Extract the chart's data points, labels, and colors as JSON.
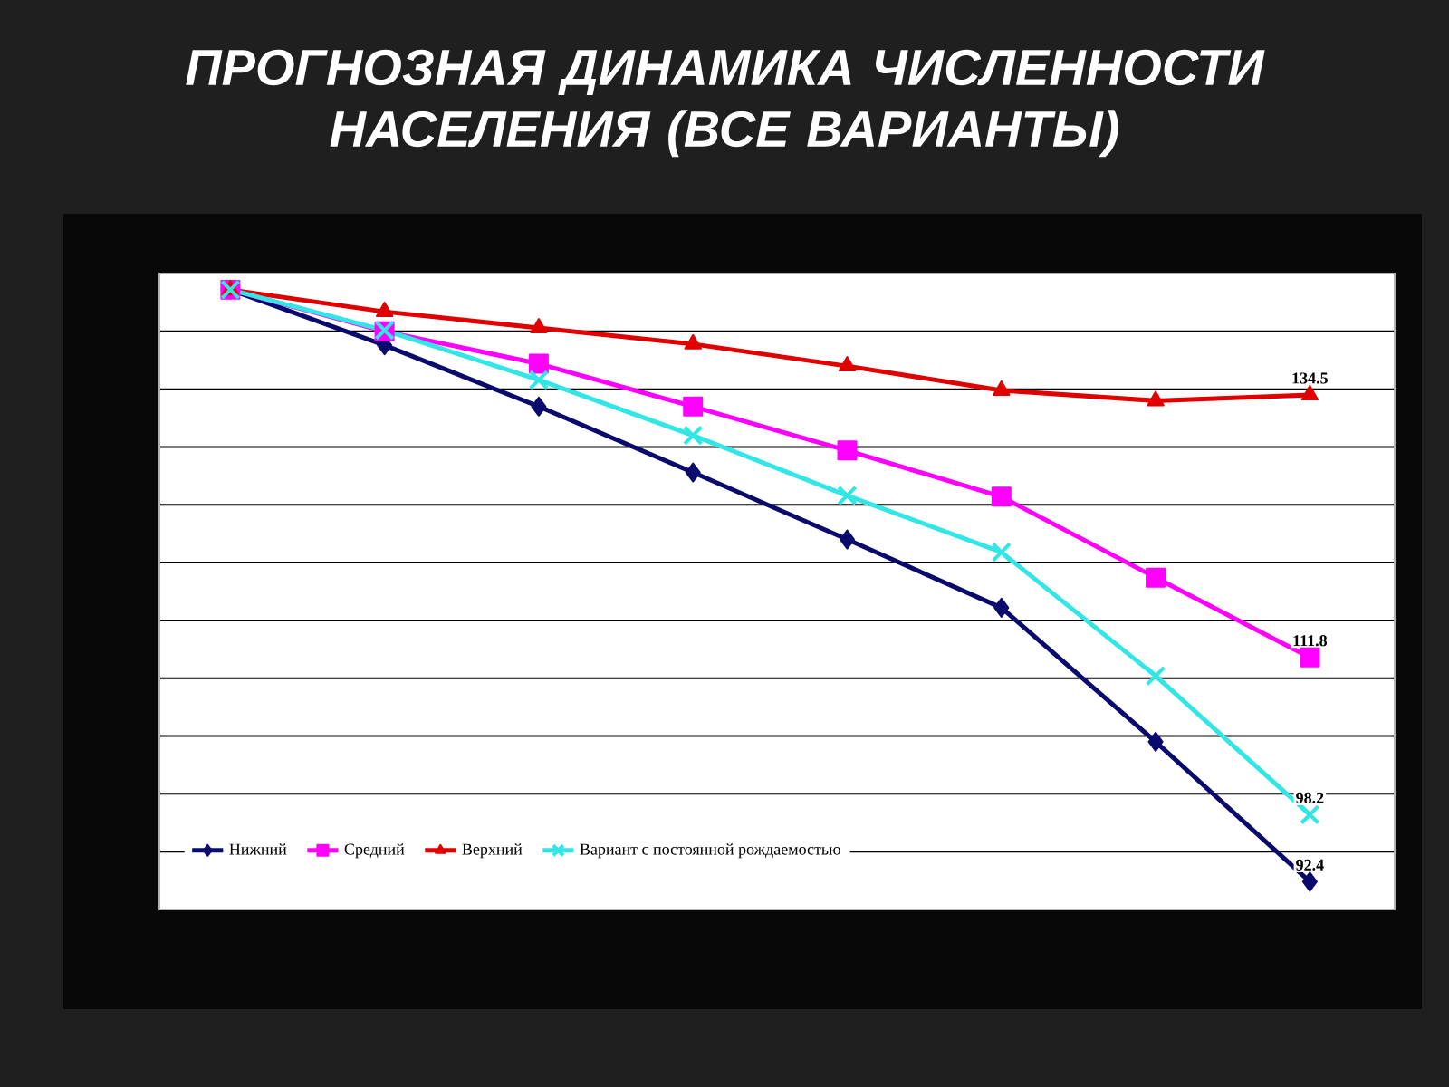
{
  "chart_data": {
    "type": "line",
    "title": "ПРОГНОЗНАЯ ДИНАМИКА ЧИСЛЕННОСТИ НАСЕЛЕНИЯ (ВСЕ ВАРИАНТЫ)",
    "categories": [
      null,
      null,
      null,
      null,
      null,
      null,
      null,
      null
    ],
    "series": [
      {
        "name": "Нижний",
        "color": "#0a0a6e",
        "marker": "diamond",
        "values": [
          143.6,
          138.8,
          133.5,
          127.8,
          122.0,
          116.1,
          104.5,
          92.4
        ],
        "value_labels": [
          null,
          null,
          null,
          null,
          null,
          null,
          null,
          "92.4"
        ]
      },
      {
        "name": "Средний",
        "color": "#ff00ff",
        "marker": "square",
        "values": [
          143.6,
          140.0,
          137.2,
          133.5,
          129.7,
          125.7,
          118.7,
          111.8
        ],
        "value_labels": [
          null,
          null,
          null,
          null,
          null,
          null,
          null,
          "111.8"
        ]
      },
      {
        "name": "Верхний",
        "color": "#e00000",
        "marker": "triangle",
        "values": [
          143.6,
          141.7,
          140.3,
          138.9,
          137.0,
          134.9,
          134.0,
          134.5
        ],
        "value_labels": [
          null,
          null,
          null,
          null,
          null,
          null,
          null,
          "134.5"
        ]
      },
      {
        "name": "Вариант с постоянной рождаемостью",
        "color": "#33e6e6",
        "marker": "cross",
        "values": [
          143.6,
          140.1,
          135.8,
          131.0,
          125.8,
          120.9,
          110.2,
          98.2
        ],
        "value_labels": [
          null,
          null,
          null,
          null,
          null,
          null,
          null,
          "98.2"
        ]
      }
    ],
    "ylim": [
      90,
      145
    ],
    "yticks": [
      {
        "value": 90,
        "label": null
      },
      {
        "value": 95,
        "label": null
      },
      {
        "value": 100,
        "label": null
      },
      {
        "value": 105,
        "label": null
      },
      {
        "value": 110,
        "label": null
      },
      {
        "value": 115,
        "label": null
      },
      {
        "value": 120,
        "label": null
      },
      {
        "value": 125,
        "label": null
      },
      {
        "value": 130,
        "label": null
      },
      {
        "value": 135,
        "label": null
      },
      {
        "value": 140,
        "label": null
      },
      {
        "value": 145,
        "label": null
      }
    ],
    "grid": "y",
    "legend": "bottom left"
  }
}
